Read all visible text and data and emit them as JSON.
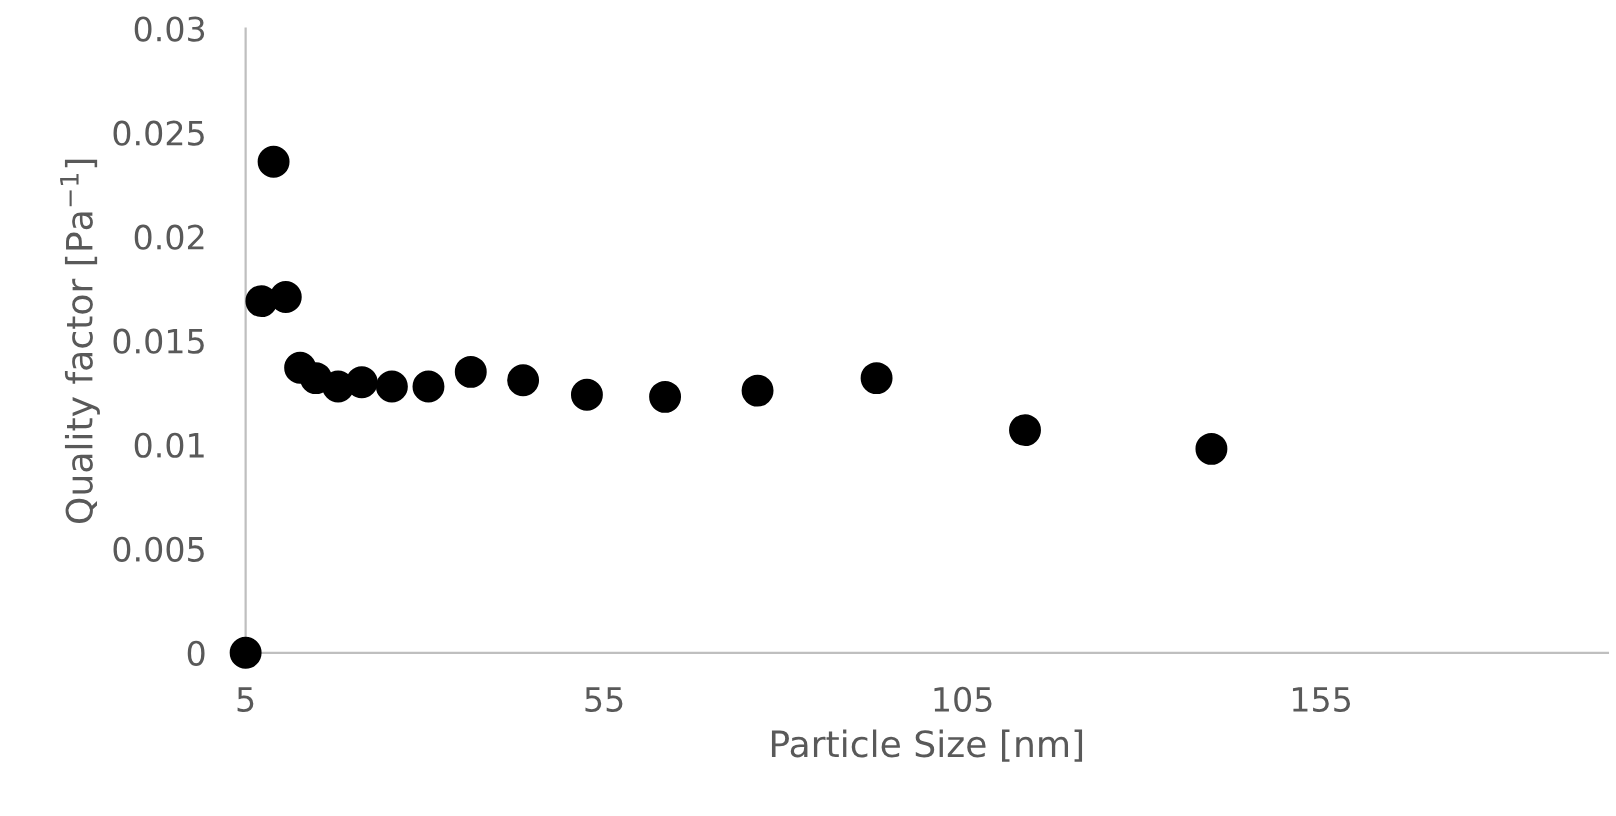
{
  "chart_data": {
    "type": "scatter",
    "xlabel": "Particle Size [nm]",
    "ylabel": "Quality factor [Pa$^{−1}$]",
    "series": [
      {
        "color": "#000000",
        "x": [
          5,
          7.2,
          8.9,
          10.6,
          12.6,
          14.8,
          17.9,
          21.2,
          25.4,
          30.5,
          36.4,
          43.7,
          52.6,
          63.5,
          76.4,
          93,
          113.7,
          139.7
        ],
        "values": [
          0,
          0.0169,
          0.0236,
          0.0171,
          0.0137,
          0.0132,
          0.0128,
          0.013,
          0.0128,
          0.0128,
          0.0135,
          0.0131,
          0.0124,
          0.0123,
          0.0126,
          0.0132,
          0.0107,
          0.0098
        ]
      }
    ],
    "xlim": [
      5,
      195
    ],
    "xticks": [
      5,
      55,
      105,
      155
    ],
    "ylim": [
      0,
      0.03
    ],
    "yticks": [
      {
        "value": 0,
        "label": "0"
      },
      0.005,
      0.01,
      0.015,
      0.02,
      0.025,
      0.03
    ],
    "marker": "circle",
    "grid": false,
    "legend": false
  }
}
